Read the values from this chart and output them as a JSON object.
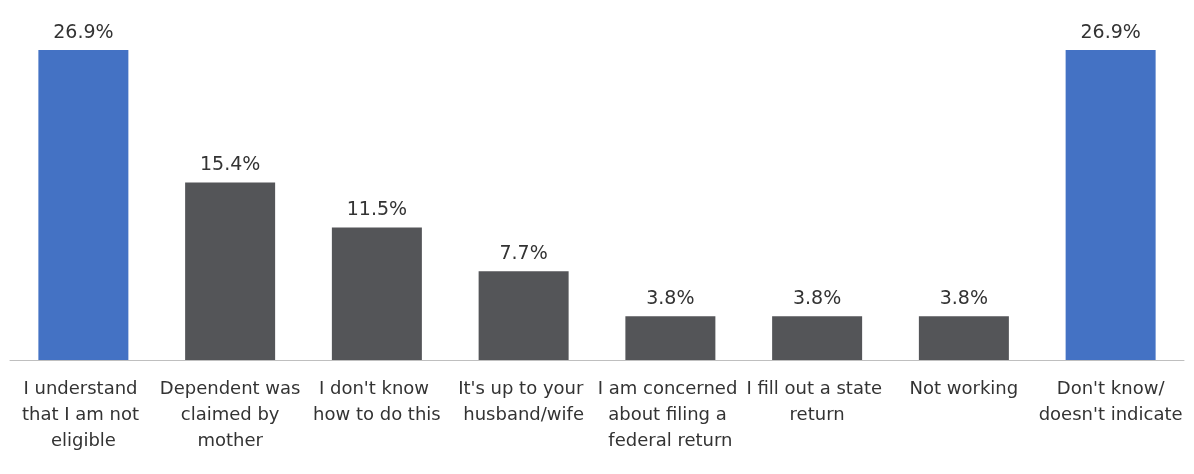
{
  "chart_data": {
    "type": "bar",
    "categories": [
      "I understand that I am not eligible",
      "Dependent was claimed by mother",
      "I don't know how to do this",
      "It's up to your husband/wife",
      "I am concerned about filing a federal return",
      "I fill out a state return",
      "Not working",
      "Don't know/doesn't indicate"
    ],
    "values": [
      26.9,
      15.4,
      11.5,
      7.7,
      3.8,
      3.8,
      3.8,
      26.9
    ],
    "colors": [
      "#4472c4",
      "#545558",
      "#545558",
      "#545558",
      "#545558",
      "#545558",
      "#545558",
      "#4472c4"
    ],
    "value_labels": [
      "26.9%",
      "15.4%",
      "11.5%",
      "7.7%",
      "3.8%",
      "3.8%",
      "3.8%",
      "26.9%"
    ]
  }
}
